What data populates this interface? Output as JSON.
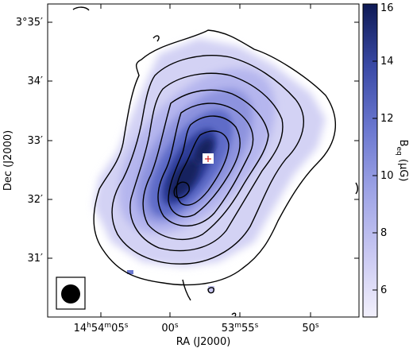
{
  "chart_data": {
    "type": "heatmap",
    "title": "",
    "xlabel": "RA (J2000)",
    "ylabel": "Dec (J2000)",
    "x_ticks": [
      {
        "h": "14",
        "hs": "h",
        "m": "54",
        "ms": "m",
        "s": "05",
        "ss": "s"
      },
      {
        "s": "00",
        "ss": "s"
      },
      {
        "m": "53",
        "ms": "m",
        "s": "55",
        "ss": "s"
      },
      {
        "s": "50",
        "ss": "s"
      }
    ],
    "y_ticks": [
      "3°35′",
      "34′",
      "33′",
      "32′",
      "31′"
    ],
    "colorbar": {
      "label_main": "B",
      "label_sub": "eq",
      "label_unit": " (μG)",
      "range": [
        5,
        16
      ],
      "ticks": [
        "6",
        "8",
        "10",
        "12",
        "14",
        "16"
      ],
      "cmap": [
        "#f2f0fc",
        "#c9c8f2",
        "#9ea4e6",
        "#6b78d0",
        "#3a4aa6",
        "#0e1a55"
      ]
    },
    "peak": {
      "ra_s": 57.5,
      "dec_arcmin": 32.72,
      "value": 16
    },
    "map_ridge": {
      "from": {
        "ra_s": 1.0,
        "dec_arcmin": 31.9
      },
      "to": {
        "ra_s": 57.0,
        "dec_arcmin": 32.85
      }
    },
    "contours": 9,
    "beam": "circular beam (lower-left)"
  }
}
